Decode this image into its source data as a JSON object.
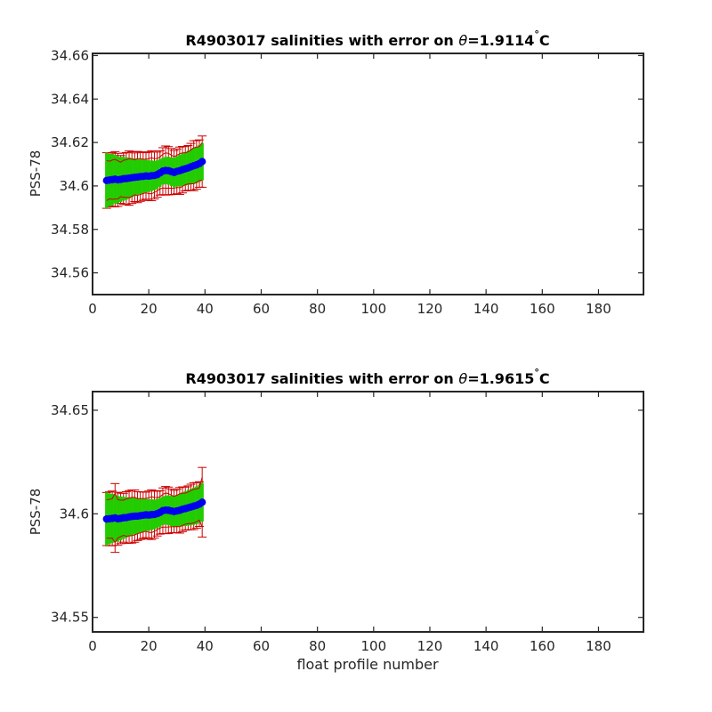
{
  "figure": {
    "background": "#ffffff",
    "colors": {
      "errorbar": "#cc0000",
      "band": "#22cc00",
      "points": "#0000ee",
      "axes": "#262626"
    }
  },
  "chart_data": [
    {
      "type": "scatter",
      "title_prefix": "R4903017 salinities with error on ",
      "title_theta": "θ",
      "title_value": "=1.9114",
      "title_degree": "°",
      "title_unit": "C",
      "xlabel": "",
      "ylabel": "PSS-78",
      "xlim": [
        0,
        196
      ],
      "ylim": [
        34.55,
        34.661
      ],
      "xticks": [
        0,
        20,
        40,
        60,
        80,
        100,
        120,
        140,
        160,
        180
      ],
      "yticks": [
        34.56,
        34.58,
        34.6,
        34.62,
        34.64,
        34.66
      ],
      "ytick_labels": [
        "34.56",
        "34.58",
        "34.6",
        "34.62",
        "34.64",
        "34.66"
      ],
      "grid": false,
      "series": [
        {
          "x": [
            5,
            6,
            7,
            8,
            9,
            10,
            11,
            12,
            13,
            14,
            15,
            16,
            17,
            18,
            19,
            20,
            21,
            22,
            23,
            24,
            25,
            26,
            27,
            28,
            29,
            30,
            31,
            32,
            33,
            34,
            35,
            36,
            37,
            38,
            39
          ],
          "y": [
            34.6025,
            34.6027,
            34.6029,
            34.6031,
            34.6028,
            34.603,
            34.6033,
            34.6034,
            34.6036,
            34.6038,
            34.604,
            34.6041,
            34.6043,
            34.6044,
            34.6046,
            34.6045,
            34.6047,
            34.6048,
            34.6052,
            34.606,
            34.6068,
            34.6071,
            34.607,
            34.6066,
            34.6062,
            34.6067,
            34.607,
            34.6075,
            34.6079,
            34.6083,
            34.6088,
            34.6093,
            34.6097,
            34.6103,
            34.6112
          ],
          "error": [
            0.0128,
            0.012,
            0.0125,
            0.0127,
            0.0122,
            0.011,
            0.0118,
            0.012,
            0.0125,
            0.0119,
            0.0112,
            0.0118,
            0.0114,
            0.011,
            0.0107,
            0.0112,
            0.0115,
            0.0108,
            0.0104,
            0.0102,
            0.0108,
            0.0113,
            0.0111,
            0.0106,
            0.0101,
            0.0103,
            0.0109,
            0.0107,
            0.0102,
            0.0103,
            0.0108,
            0.0115,
            0.0112,
            0.0109,
            0.0118
          ],
          "band": [
            0.0128,
            0.012,
            0.0118,
            0.0112,
            0.0108,
            0.0104,
            0.0101,
            0.0098,
            0.0094,
            0.009,
            0.0086,
            0.0082,
            0.008,
            0.0078,
            0.0075,
            0.0073,
            0.007,
            0.0068,
            0.0066,
            0.0064,
            0.0062,
            0.0063,
            0.0064,
            0.0066,
            0.0068,
            0.007,
            0.0073,
            0.0075,
            0.0077,
            0.0079,
            0.0081,
            0.0083,
            0.0084,
            0.0085,
            0.0086
          ]
        }
      ]
    },
    {
      "type": "scatter",
      "title_prefix": "R4903017 salinities with error on ",
      "title_theta": "θ",
      "title_value": "=1.9615",
      "title_degree": "°",
      "title_unit": "C",
      "xlabel": "float profile number",
      "ylabel": "PSS-78",
      "xlim": [
        0,
        196
      ],
      "ylim": [
        34.543,
        34.659
      ],
      "xticks": [
        0,
        20,
        40,
        60,
        80,
        100,
        120,
        140,
        160,
        180
      ],
      "yticks": [
        34.55,
        34.6,
        34.65
      ],
      "ytick_labels": [
        "34.55",
        "34.6",
        "34.65"
      ],
      "grid": false,
      "series": [
        {
          "x": [
            5,
            6,
            7,
            8,
            9,
            10,
            11,
            12,
            13,
            14,
            15,
            16,
            17,
            18,
            19,
            20,
            21,
            22,
            23,
            24,
            25,
            26,
            27,
            28,
            29,
            30,
            31,
            32,
            33,
            34,
            35,
            36,
            37,
            38,
            39
          ],
          "y": [
            34.5975,
            34.5976,
            34.5978,
            34.598,
            34.5976,
            34.5978,
            34.5981,
            34.5982,
            34.5985,
            34.5987,
            34.5989,
            34.5989,
            34.5991,
            34.5993,
            34.5995,
            34.5994,
            34.5996,
            34.5997,
            34.6001,
            34.6007,
            34.6015,
            34.6018,
            34.6017,
            34.6014,
            34.6011,
            34.6014,
            34.6017,
            34.6022,
            34.6025,
            34.6029,
            34.6033,
            34.6037,
            34.6041,
            34.6047,
            34.6056
          ],
          "error": [
            0.0128,
            0.013,
            0.0132,
            0.0166,
            0.0128,
            0.0122,
            0.0118,
            0.0125,
            0.0127,
            0.0128,
            0.0126,
            0.0118,
            0.0115,
            0.0112,
            0.011,
            0.0116,
            0.012,
            0.0114,
            0.0108,
            0.0105,
            0.011,
            0.0114,
            0.0112,
            0.0106,
            0.0102,
            0.0105,
            0.011,
            0.0108,
            0.0104,
            0.0106,
            0.011,
            0.0113,
            0.011,
            0.0108,
            0.0168
          ],
          "band": [
            0.0128,
            0.0122,
            0.0118,
            0.0114,
            0.011,
            0.0106,
            0.0102,
            0.0098,
            0.0094,
            0.0091,
            0.0088,
            0.0085,
            0.0082,
            0.008,
            0.0078,
            0.0076,
            0.0074,
            0.0072,
            0.0071,
            0.007,
            0.0069,
            0.007,
            0.0072,
            0.0074,
            0.0076,
            0.0078,
            0.008,
            0.0082,
            0.0084,
            0.0086,
            0.0088,
            0.009,
            0.0091,
            0.0092,
            0.0093
          ]
        }
      ]
    }
  ]
}
